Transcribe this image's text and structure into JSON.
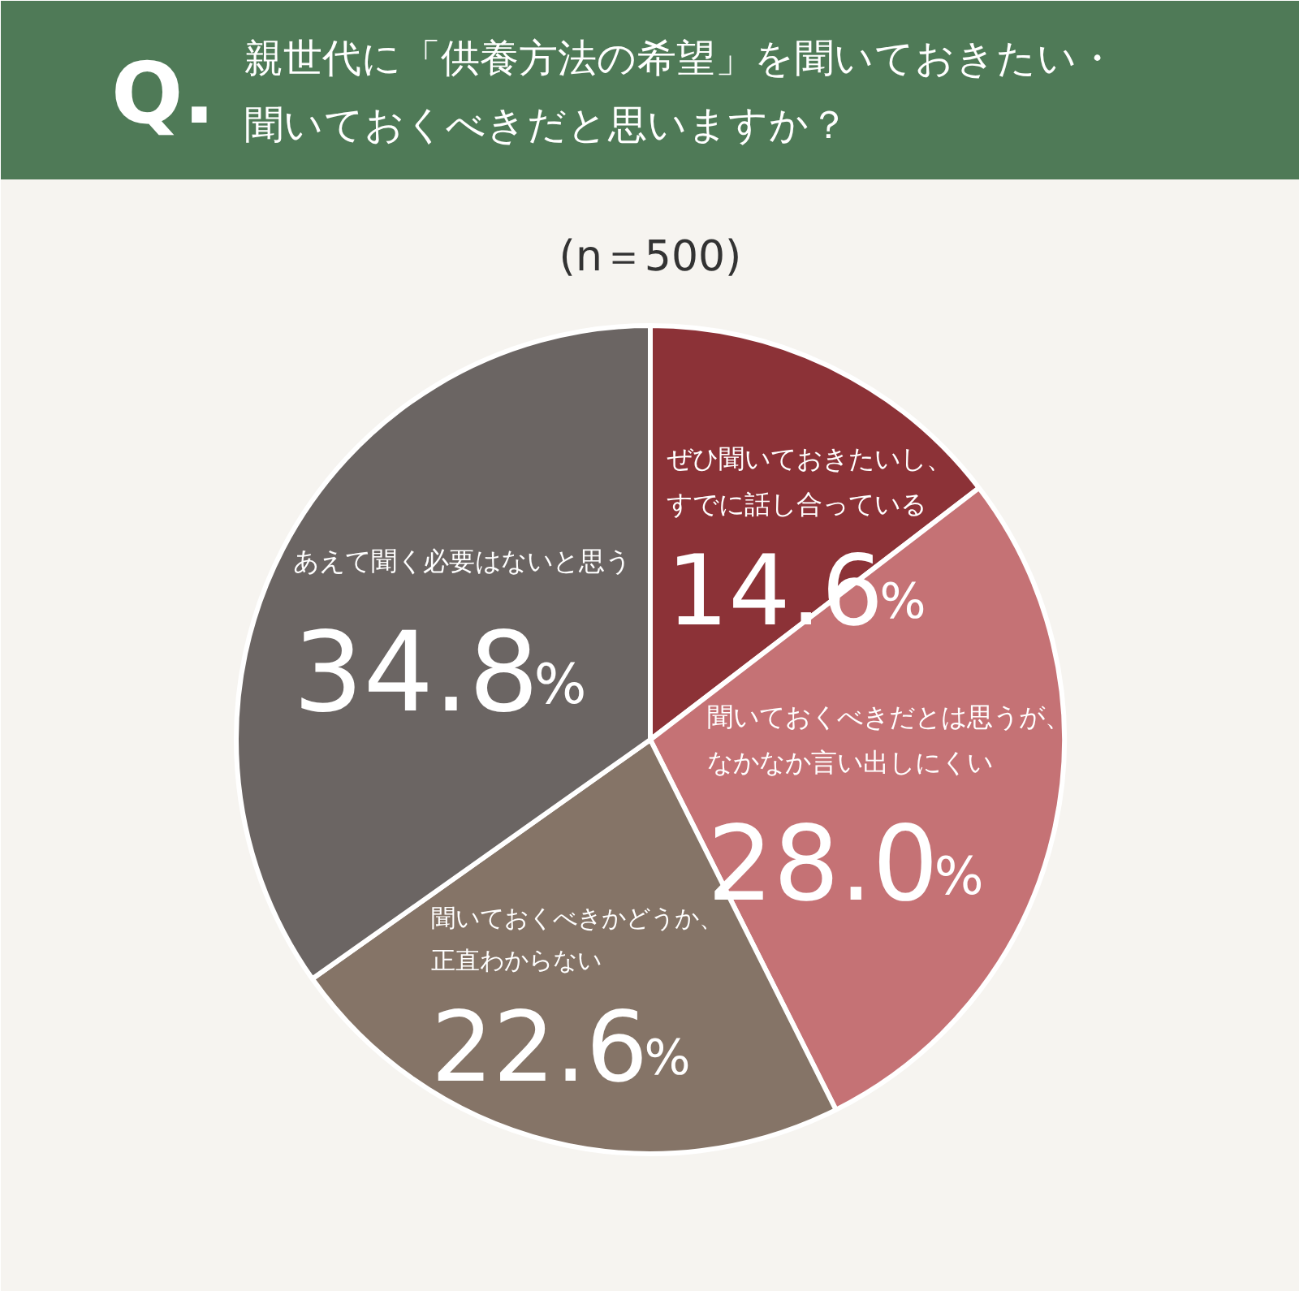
{
  "chart_data": {
    "type": "pie",
    "title": "親世代に「供養方法の希望」を聞いておきたい・聞いておくべきだと思いますか？",
    "subtitle": "(n＝500)",
    "annotations": [
      "Q."
    ],
    "categories": [
      "ぜひ聞いておきたいし、すでに話し合っている",
      "聞いておくべきだとは思うが、なかなか言い出しにくい",
      "聞いておくべきかどうか、正直わからない",
      "あえて聞く必要はないと思う"
    ],
    "values": [
      14.6,
      28.0,
      22.6,
      34.8
    ],
    "value_labels": [
      "14.6%",
      "28.0%",
      "22.6%",
      "34.8%"
    ],
    "colors": [
      "#8c3237",
      "#c57275",
      "#857467",
      "#6b6563"
    ]
  }
}
